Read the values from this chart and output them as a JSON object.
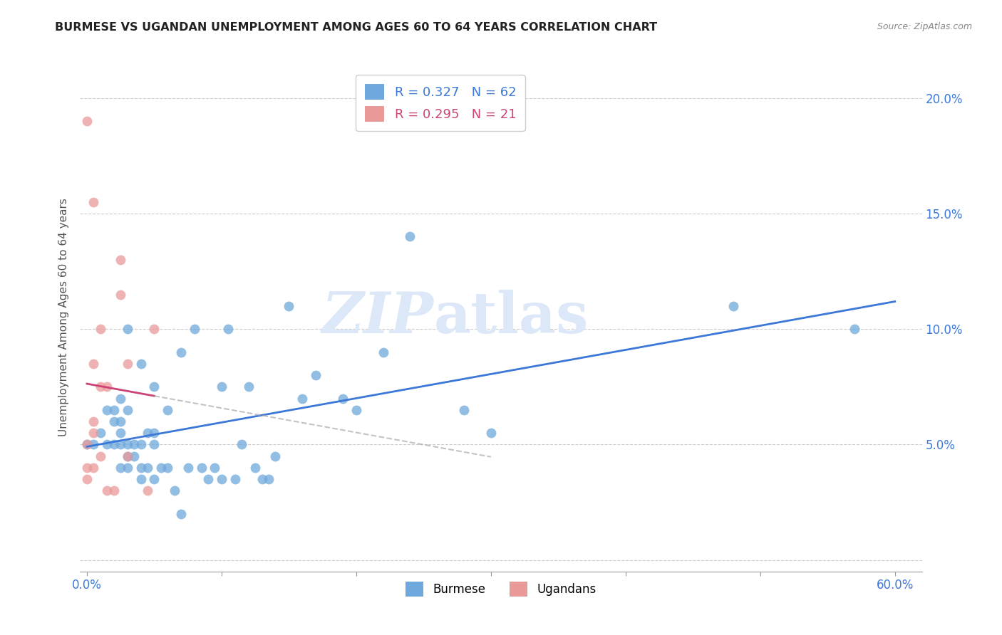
{
  "title": "BURMESE VS UGANDAN UNEMPLOYMENT AMONG AGES 60 TO 64 YEARS CORRELATION CHART",
  "source": "Source: ZipAtlas.com",
  "ylabel": "Unemployment Among Ages 60 to 64 years",
  "xlim": [
    -0.005,
    0.62
  ],
  "ylim": [
    -0.005,
    0.215
  ],
  "xticks": [
    0.0,
    0.1,
    0.2,
    0.3,
    0.4,
    0.5,
    0.6
  ],
  "xticklabels_show": [
    "0.0%",
    "",
    "",
    "",
    "",
    "",
    "60.0%"
  ],
  "yticks_left": [
    0.0,
    0.05,
    0.1,
    0.15,
    0.2
  ],
  "yticklabels_left": [
    "",
    "",
    "",
    "",
    ""
  ],
  "yticks_right": [
    0.05,
    0.1,
    0.15,
    0.2
  ],
  "yticklabels_right": [
    "5.0%",
    "10.0%",
    "15.0%",
    "20.0%"
  ],
  "burmese_color": "#6fa8dc",
  "ugandan_color": "#ea9999",
  "trendline_blue_color": "#3c78d8",
  "trendline_pink_color": "#cc4477",
  "legend_R_blue": "0.327",
  "legend_N_blue": "62",
  "legend_R_pink": "0.295",
  "legend_N_pink": "21",
  "watermark_zip": "ZIP",
  "watermark_atlas": "atlas",
  "background_color": "#ffffff",
  "grid_color": "#cccccc",
  "tick_label_color": "#3c78d8",
  "burmese_x": [
    0.0,
    0.005,
    0.01,
    0.015,
    0.015,
    0.02,
    0.02,
    0.02,
    0.025,
    0.025,
    0.025,
    0.025,
    0.025,
    0.03,
    0.03,
    0.03,
    0.03,
    0.03,
    0.035,
    0.035,
    0.04,
    0.04,
    0.04,
    0.04,
    0.045,
    0.045,
    0.05,
    0.05,
    0.05,
    0.05,
    0.055,
    0.06,
    0.06,
    0.065,
    0.07,
    0.07,
    0.075,
    0.08,
    0.085,
    0.09,
    0.095,
    0.1,
    0.1,
    0.105,
    0.11,
    0.115,
    0.12,
    0.125,
    0.13,
    0.135,
    0.14,
    0.15,
    0.16,
    0.17,
    0.19,
    0.2,
    0.22,
    0.24,
    0.28,
    0.3,
    0.48,
    0.57
  ],
  "burmese_y": [
    0.05,
    0.05,
    0.055,
    0.05,
    0.065,
    0.05,
    0.06,
    0.065,
    0.04,
    0.05,
    0.055,
    0.06,
    0.07,
    0.04,
    0.045,
    0.05,
    0.065,
    0.1,
    0.045,
    0.05,
    0.035,
    0.04,
    0.05,
    0.085,
    0.04,
    0.055,
    0.035,
    0.05,
    0.055,
    0.075,
    0.04,
    0.04,
    0.065,
    0.03,
    0.02,
    0.09,
    0.04,
    0.1,
    0.04,
    0.035,
    0.04,
    0.035,
    0.075,
    0.1,
    0.035,
    0.05,
    0.075,
    0.04,
    0.035,
    0.035,
    0.045,
    0.11,
    0.07,
    0.08,
    0.07,
    0.065,
    0.09,
    0.14,
    0.065,
    0.055,
    0.11,
    0.1
  ],
  "ugandan_x": [
    0.0,
    0.0,
    0.0,
    0.0,
    0.005,
    0.005,
    0.005,
    0.005,
    0.005,
    0.01,
    0.01,
    0.01,
    0.015,
    0.015,
    0.02,
    0.025,
    0.025,
    0.03,
    0.03,
    0.045,
    0.05
  ],
  "ugandan_y": [
    0.035,
    0.04,
    0.05,
    0.19,
    0.04,
    0.055,
    0.06,
    0.085,
    0.155,
    0.045,
    0.075,
    0.1,
    0.03,
    0.075,
    0.03,
    0.115,
    0.13,
    0.045,
    0.085,
    0.03,
    0.1
  ]
}
